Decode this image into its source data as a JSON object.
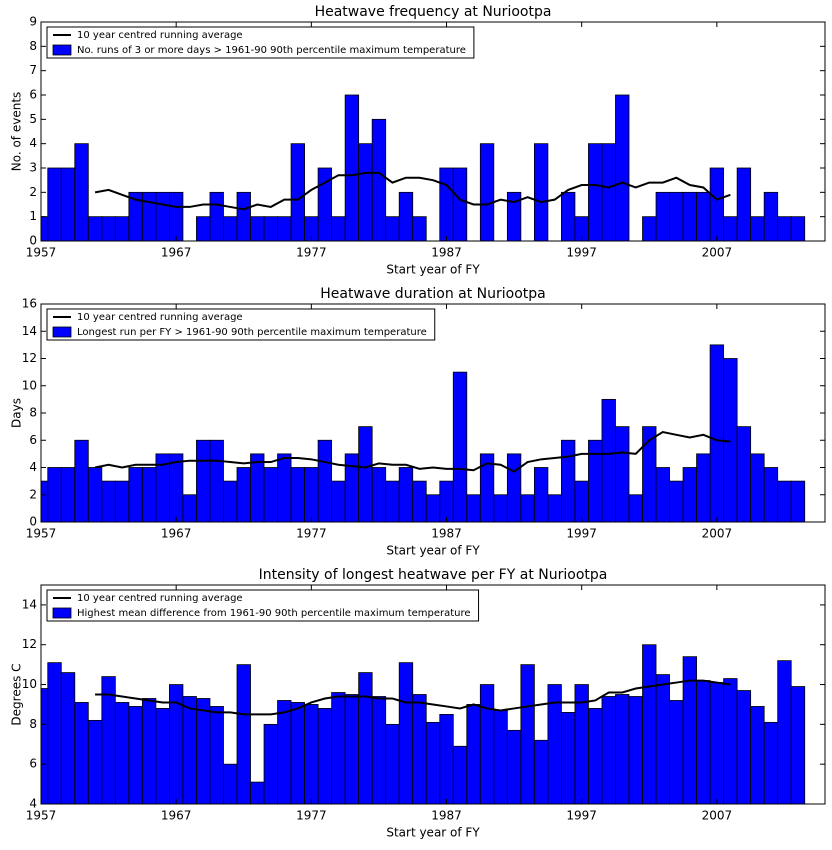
{
  "charts": [
    {
      "chart_data": {
        "type": "bar",
        "title": "Heatwave frequency at Nuriootpa",
        "x_label": "Start year of FY",
        "y_label": "No. of events",
        "x": [
          1957,
          1958,
          1959,
          1960,
          1961,
          1962,
          1963,
          1964,
          1965,
          1966,
          1967,
          1968,
          1969,
          1970,
          1971,
          1972,
          1973,
          1974,
          1975,
          1976,
          1977,
          1978,
          1979,
          1980,
          1981,
          1982,
          1983,
          1984,
          1985,
          1986,
          1987,
          1988,
          1989,
          1990,
          1991,
          1992,
          1993,
          1994,
          1995,
          1996,
          1997,
          1998,
          1999,
          2000,
          2001,
          2002,
          2003,
          2004,
          2005,
          2006,
          2007,
          2008,
          2009,
          2010,
          2011,
          2012,
          2013
        ],
        "xlim": [
          1957,
          2015
        ],
        "xticks": [
          1957,
          1967,
          1977,
          1987,
          1997,
          2007
        ],
        "ylim": [
          0,
          9
        ],
        "yticks": [
          0,
          1,
          2,
          3,
          4,
          5,
          6,
          7,
          8,
          9
        ],
        "series": [
          {
            "name": "10 year centred running average",
            "type": "line",
            "color": "#000000",
            "values": [
              null,
              null,
              null,
              null,
              2.0,
              2.1,
              1.9,
              1.7,
              1.6,
              1.5,
              1.4,
              1.4,
              1.5,
              1.5,
              1.4,
              1.3,
              1.5,
              1.4,
              1.7,
              1.7,
              2.1,
              2.4,
              2.7,
              2.7,
              2.8,
              2.8,
              2.4,
              2.6,
              2.6,
              2.5,
              2.3,
              1.7,
              1.5,
              1.5,
              1.7,
              1.6,
              1.8,
              1.6,
              1.7,
              2.1,
              2.3,
              2.3,
              2.2,
              2.4,
              2.2,
              2.4,
              2.4,
              2.6,
              2.3,
              2.2,
              1.7,
              1.9,
              null,
              null,
              null,
              null,
              null
            ]
          },
          {
            "name": "No. runs of 3 or more days > 1961-90 90th percentile maximum temperature",
            "type": "bar",
            "color": "#0000ff",
            "values": [
              1,
              3,
              3,
              4,
              1,
              1,
              1,
              2,
              2,
              2,
              2,
              0,
              1,
              2,
              1,
              2,
              1,
              1,
              1,
              4,
              1,
              3,
              1,
              6,
              4,
              5,
              1,
              2,
              1,
              0,
              3,
              3,
              0,
              4,
              0,
              2,
              0,
              4,
              0,
              2,
              1,
              4,
              4,
              6,
              0,
              1,
              2,
              2,
              2,
              2,
              3,
              1,
              3,
              1,
              2,
              1,
              1
            ]
          }
        ]
      }
    },
    {
      "chart_data": {
        "type": "bar",
        "title": "Heatwave duration at Nuriootpa",
        "x_label": "Start year of FY",
        "y_label": "Days",
        "x": [
          1957,
          1958,
          1959,
          1960,
          1961,
          1962,
          1963,
          1964,
          1965,
          1966,
          1967,
          1968,
          1969,
          1970,
          1971,
          1972,
          1973,
          1974,
          1975,
          1976,
          1977,
          1978,
          1979,
          1980,
          1981,
          1982,
          1983,
          1984,
          1985,
          1986,
          1987,
          1988,
          1989,
          1990,
          1991,
          1992,
          1993,
          1994,
          1995,
          1996,
          1997,
          1998,
          1999,
          2000,
          2001,
          2002,
          2003,
          2004,
          2005,
          2006,
          2007,
          2008,
          2009,
          2010,
          2011,
          2012,
          2013
        ],
        "xlim": [
          1957,
          2015
        ],
        "xticks": [
          1957,
          1967,
          1977,
          1987,
          1997,
          2007
        ],
        "ylim": [
          0,
          16
        ],
        "yticks": [
          0,
          2,
          4,
          6,
          8,
          10,
          12,
          14,
          16
        ],
        "series": [
          {
            "name": "10 year centred running average",
            "type": "line",
            "color": "#000000",
            "values": [
              null,
              null,
              null,
              null,
              4.0,
              4.2,
              4.0,
              4.2,
              4.2,
              4.2,
              4.4,
              4.5,
              4.5,
              4.5,
              4.4,
              4.3,
              4.4,
              4.4,
              4.7,
              4.7,
              4.6,
              4.4,
              4.2,
              4.1,
              4.0,
              4.3,
              4.2,
              4.2,
              3.9,
              4.0,
              3.9,
              3.9,
              3.8,
              4.3,
              4.2,
              3.7,
              4.4,
              4.6,
              4.7,
              4.8,
              5.0,
              5.0,
              5.0,
              5.1,
              5.0,
              6.0,
              6.6,
              6.4,
              6.2,
              6.4,
              6.0,
              5.9,
              null,
              null,
              null,
              null,
              null
            ]
          },
          {
            "name": "Longest run per FY > 1961-90 90th percentile maximum temperature",
            "type": "bar",
            "color": "#0000ff",
            "values": [
              3,
              4,
              4,
              6,
              4,
              3,
              3,
              4,
              4,
              5,
              5,
              2,
              6,
              6,
              3,
              4,
              5,
              4,
              5,
              4,
              4,
              6,
              3,
              5,
              7,
              4,
              3,
              4,
              3,
              2,
              3,
              11,
              2,
              5,
              2,
              5,
              2,
              4,
              2,
              6,
              3,
              6,
              9,
              7,
              2,
              7,
              4,
              3,
              4,
              5,
              13,
              12,
              7,
              5,
              4,
              3,
              3
            ]
          }
        ]
      }
    },
    {
      "chart_data": {
        "type": "bar",
        "title": "Intensity of longest heatwave per FY at Nuriootpa",
        "x_label": "Start year of FY",
        "y_label": "Degrees C",
        "x": [
          1957,
          1958,
          1959,
          1960,
          1961,
          1962,
          1963,
          1964,
          1965,
          1966,
          1967,
          1968,
          1969,
          1970,
          1971,
          1972,
          1973,
          1974,
          1975,
          1976,
          1977,
          1978,
          1979,
          1980,
          1981,
          1982,
          1983,
          1984,
          1985,
          1986,
          1987,
          1988,
          1989,
          1990,
          1991,
          1992,
          1993,
          1994,
          1995,
          1996,
          1997,
          1998,
          1999,
          2000,
          2001,
          2002,
          2003,
          2004,
          2005,
          2006,
          2007,
          2008,
          2009,
          2010,
          2011,
          2012,
          2013
        ],
        "xlim": [
          1957,
          2015
        ],
        "xticks": [
          1957,
          1967,
          1977,
          1987,
          1997,
          2007
        ],
        "ylim": [
          4,
          15
        ],
        "yticks": [
          4,
          6,
          8,
          10,
          12,
          14
        ],
        "series": [
          {
            "name": "10 year centred running average",
            "type": "line",
            "color": "#000000",
            "values": [
              null,
              null,
              null,
              null,
              9.5,
              9.5,
              9.4,
              9.3,
              9.2,
              9.1,
              9.1,
              8.8,
              8.7,
              8.6,
              8.6,
              8.5,
              8.5,
              8.5,
              8.6,
              8.8,
              9.1,
              9.3,
              9.4,
              9.4,
              9.4,
              9.3,
              9.3,
              9.1,
              9.1,
              9.0,
              8.9,
              8.8,
              9.0,
              8.8,
              8.7,
              8.8,
              8.9,
              9.0,
              9.1,
              9.1,
              9.1,
              9.2,
              9.6,
              9.6,
              9.8,
              9.9,
              10.0,
              10.1,
              10.2,
              10.2,
              10.1,
              10.0,
              null,
              null,
              null,
              null,
              null
            ]
          },
          {
            "name": "Highest mean difference from 1961-90 90th percentile maximum temperature",
            "type": "bar",
            "color": "#0000ff",
            "values": [
              9.8,
              11.1,
              10.6,
              9.1,
              8.2,
              10.4,
              9.1,
              8.9,
              9.3,
              8.8,
              10.0,
              9.4,
              9.3,
              8.9,
              6.0,
              11.0,
              5.1,
              8.0,
              9.2,
              9.1,
              9.0,
              8.8,
              9.6,
              9.5,
              10.6,
              9.4,
              8.0,
              11.1,
              9.5,
              8.1,
              8.5,
              6.9,
              9.0,
              10.0,
              8.7,
              7.7,
              11.0,
              7.2,
              10.0,
              8.6,
              10.0,
              8.8,
              9.4,
              9.5,
              9.4,
              12.0,
              10.5,
              9.2,
              11.4,
              10.2,
              10.1,
              10.3,
              9.7,
              8.9,
              8.1,
              11.2,
              9.9
            ]
          }
        ]
      }
    }
  ]
}
